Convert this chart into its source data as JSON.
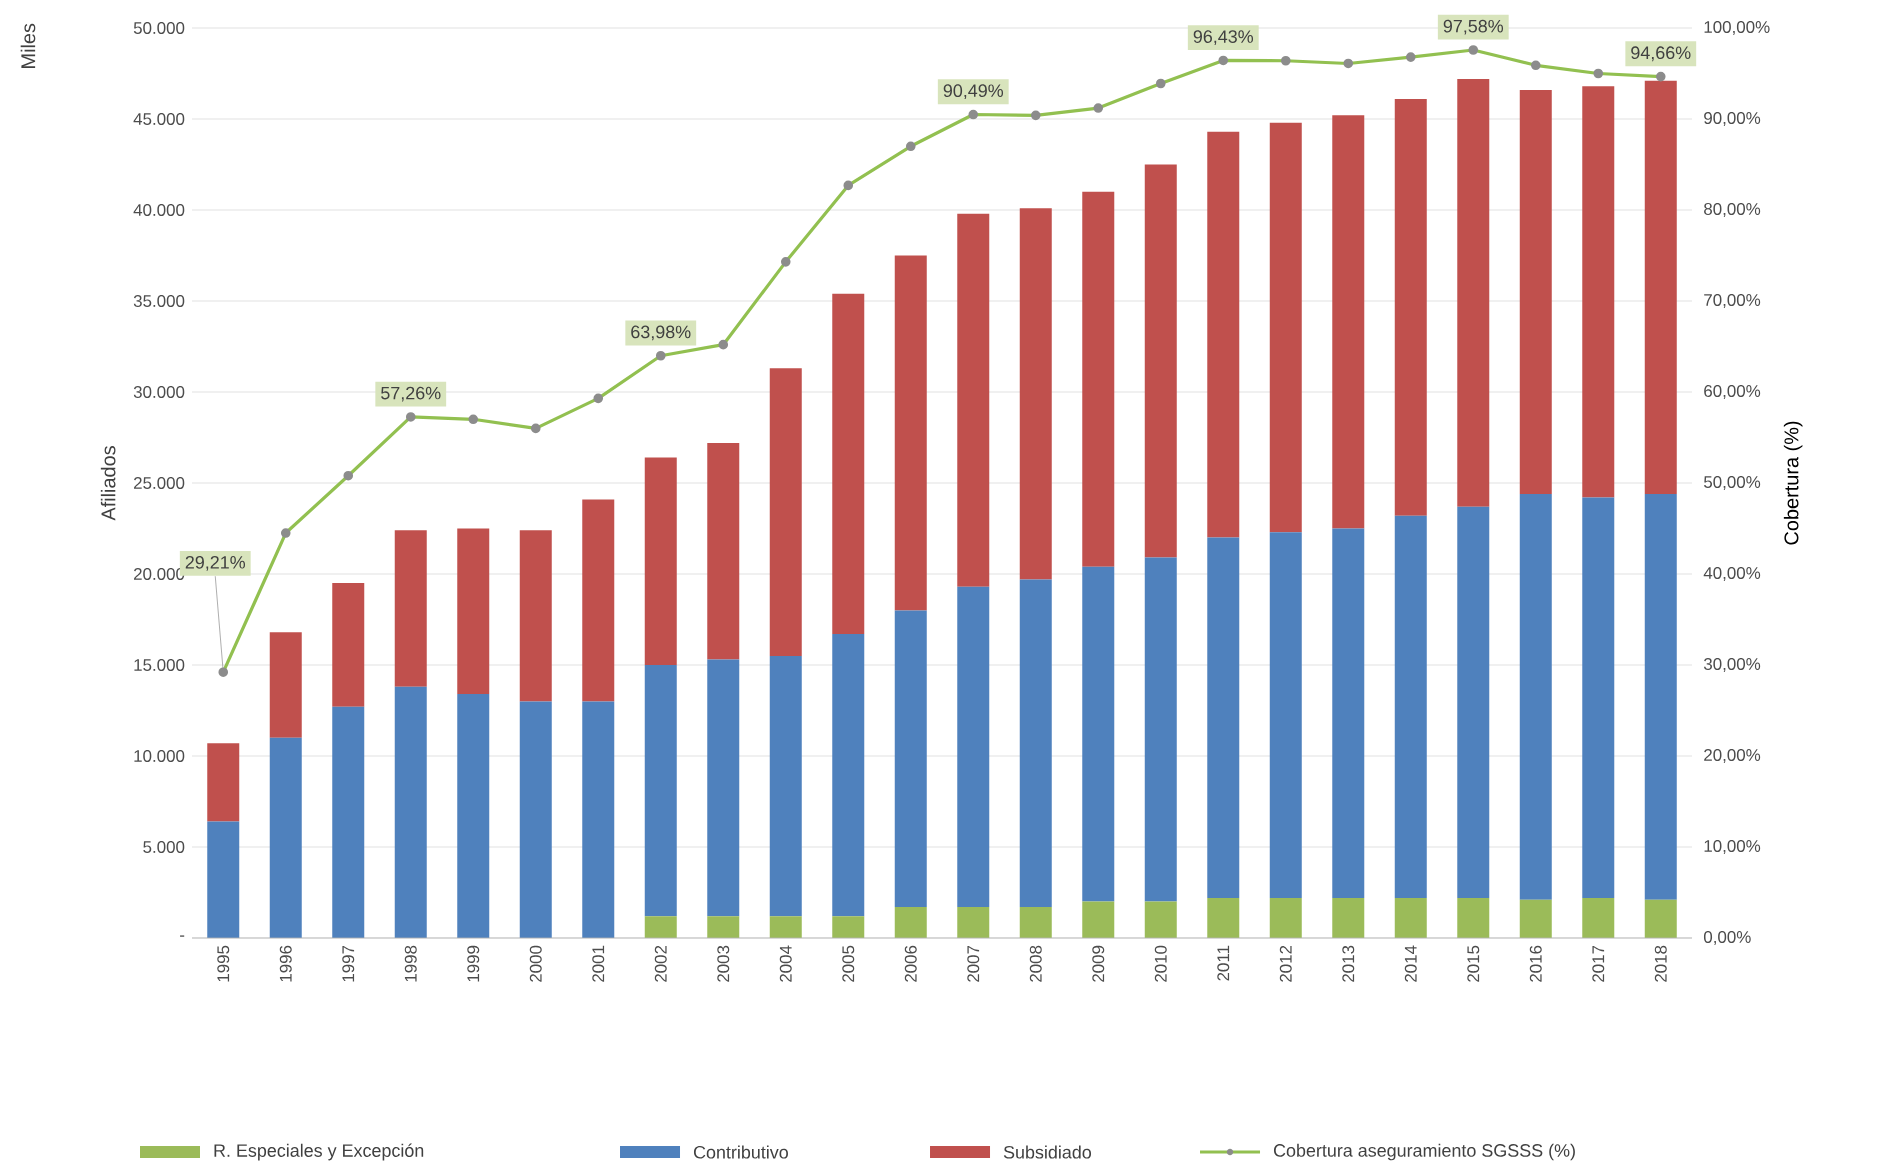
{
  "chart_data": {
    "type": "bar",
    "stacked": true,
    "categories": [
      "1995",
      "1996",
      "1997",
      "1998",
      "1999",
      "2000",
      "2001",
      "2002",
      "2003",
      "2004",
      "2005",
      "2006",
      "2007",
      "2008",
      "2009",
      "2010",
      "2011",
      "2012",
      "2013",
      "2014",
      "2015",
      "2016",
      "2017",
      "2018"
    ],
    "series": [
      {
        "name": "R. Especiales y Excepción",
        "color": "#9bbb59",
        "values": [
          0,
          0,
          0,
          0,
          0,
          0,
          0,
          1200,
          1200,
          1200,
          1200,
          1700,
          1700,
          1700,
          2000,
          2000,
          2200,
          2200,
          2200,
          2200,
          2200,
          2100,
          2200,
          2100
        ]
      },
      {
        "name": "Contributivo",
        "color": "#4f81bd",
        "values": [
          6400,
          11000,
          12700,
          13800,
          13400,
          13000,
          13000,
          13800,
          14100,
          14300,
          15500,
          16300,
          17600,
          18000,
          18400,
          18900,
          19800,
          20100,
          20300,
          21000,
          21500,
          22300,
          22000,
          22300
        ]
      },
      {
        "name": "Subsidiado",
        "color": "#c0504d",
        "values": [
          4300,
          5800,
          6800,
          8600,
          9100,
          9400,
          11100,
          11400,
          11900,
          15800,
          18700,
          19500,
          20500,
          20400,
          20600,
          21600,
          22300,
          22500,
          22700,
          22900,
          23500,
          22200,
          22600,
          22700
        ]
      },
      {
        "name": "Cobertura aseguramiento SGSSS (%)",
        "type": "line",
        "axis": "y2",
        "color": "#92c050",
        "marker": "circle",
        "values": [
          29.21,
          44.5,
          50.8,
          57.26,
          57.0,
          56.0,
          59.3,
          63.98,
          65.2,
          74.3,
          82.7,
          87.0,
          90.49,
          90.4,
          91.2,
          93.9,
          96.43,
          96.4,
          96.1,
          96.8,
          97.58,
          95.9,
          95.0,
          94.66
        ],
        "value_labels": [
          "29,21%",
          null,
          null,
          "57,26%",
          null,
          null,
          null,
          "63,98%",
          null,
          null,
          null,
          null,
          "90,49%",
          null,
          null,
          null,
          "96,43%",
          null,
          null,
          null,
          "97,58%",
          null,
          null,
          "94,66%"
        ]
      }
    ],
    "ylabel": "Afiliados",
    "y2label": "Cobertura (%)",
    "annotations": [
      "Miles"
    ],
    "ylim": [
      0,
      50000
    ],
    "yticks": [
      {
        "value": 0,
        "label": "-"
      },
      {
        "value": 5000,
        "label": "5.000"
      },
      {
        "value": 10000,
        "label": "10.000"
      },
      {
        "value": 15000,
        "label": "15.000"
      },
      {
        "value": 20000,
        "label": "20.000"
      },
      {
        "value": 25000,
        "label": "25.000"
      },
      {
        "value": 30000,
        "label": "30.000"
      },
      {
        "value": 35000,
        "label": "35.000"
      },
      {
        "value": 40000,
        "label": "40.000"
      },
      {
        "value": 45000,
        "label": "45.000"
      },
      {
        "value": 50000,
        "label": "50.000"
      }
    ],
    "y2lim": [
      0,
      100
    ],
    "y2ticks": [
      {
        "value": 0,
        "label": "0,00%"
      },
      {
        "value": 10,
        "label": "10,00%"
      },
      {
        "value": 20,
        "label": "20,00%"
      },
      {
        "value": 30,
        "label": "30,00%"
      },
      {
        "value": 40,
        "label": "40,00%"
      },
      {
        "value": 50,
        "label": "50,00%"
      },
      {
        "value": 60,
        "label": "60,00%"
      },
      {
        "value": 70,
        "label": "70,00%"
      },
      {
        "value": 80,
        "label": "80,00%"
      },
      {
        "value": 90,
        "label": "90,00%"
      },
      {
        "value": 100,
        "label": "100,00%"
      }
    ],
    "grid": "y",
    "legend": "bottom"
  }
}
